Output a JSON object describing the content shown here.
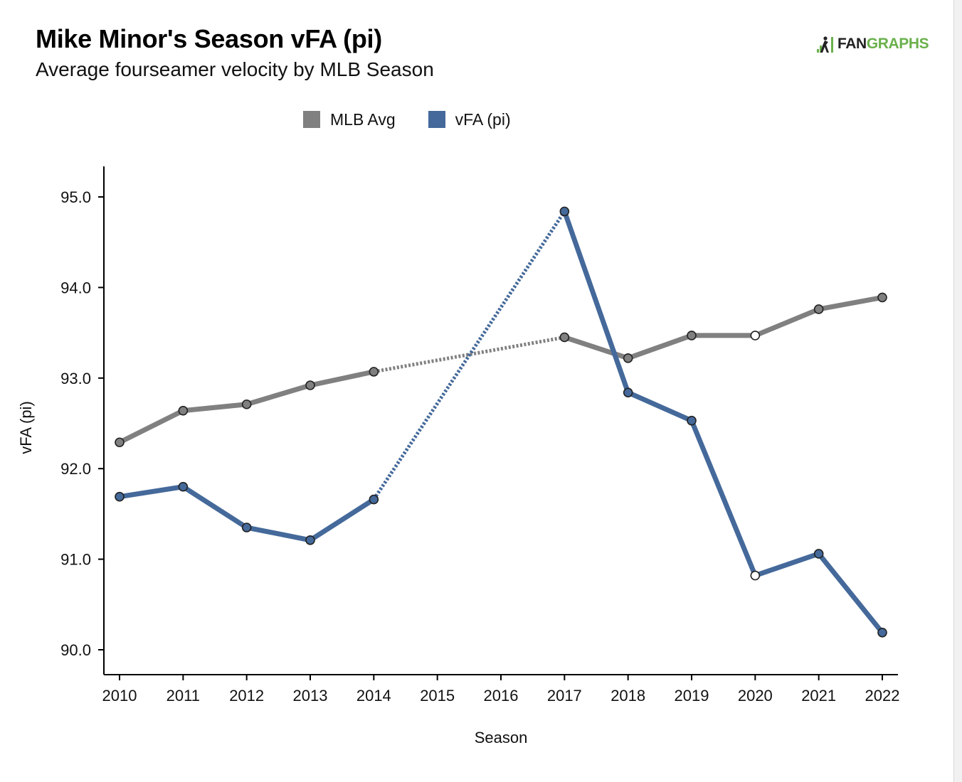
{
  "header": {
    "title": "Mike Minor's Season vFA (pi)",
    "subtitle": "Average fourseamer velocity by MLB Season"
  },
  "brand": {
    "fan": "FAN",
    "graphs": "GRAPHS",
    "icon": "fangraphs-logo-icon"
  },
  "colors": {
    "mlb": "#808080",
    "player": "#44699a",
    "axis": "#000000",
    "brand_green": "#6ab04c"
  },
  "chart_data": {
    "type": "line",
    "xlabel": "Season",
    "ylabel": "vFA (pi)",
    "ylim": [
      89.7,
      95.35
    ],
    "xlim": [
      2009.8,
      2022.2
    ],
    "x_ticks": [
      2010,
      2011,
      2012,
      2013,
      2014,
      2015,
      2016,
      2017,
      2018,
      2019,
      2020,
      2021,
      2022
    ],
    "x_tick_labels": [
      "2010",
      "2011",
      "2012",
      "2013",
      "2014",
      "2015",
      "2016",
      "2017",
      "2018",
      "2019",
      "2020",
      "2021",
      "2022"
    ],
    "y_ticks": [
      90,
      91,
      92,
      93,
      94,
      95
    ],
    "y_tick_labels": [
      "90.0",
      "91.0",
      "92.0",
      "93.0",
      "94.0",
      "95.0"
    ],
    "grid": false,
    "legend_position": "top-center",
    "series": [
      {
        "name": "MLB Avg",
        "color": "#808080",
        "x": [
          2010,
          2011,
          2012,
          2013,
          2014,
          2017,
          2018,
          2019,
          2020,
          2021,
          2022
        ],
        "values": [
          92.29,
          92.64,
          92.71,
          92.92,
          93.07,
          93.45,
          93.22,
          93.47,
          93.47,
          93.76,
          93.89
        ],
        "hollow_points": [
          2020
        ],
        "gap_dotted": [
          [
            2014,
            2017
          ]
        ]
      },
      {
        "name": "vFA (pi)",
        "color": "#44699a",
        "x": [
          2010,
          2011,
          2012,
          2013,
          2014,
          2017,
          2018,
          2019,
          2020,
          2021,
          2022
        ],
        "values": [
          91.69,
          91.8,
          91.35,
          91.21,
          91.66,
          94.84,
          92.84,
          92.53,
          90.82,
          91.06,
          90.19
        ],
        "hollow_points": [
          2020
        ],
        "gap_dotted": [
          [
            2014,
            2017
          ]
        ]
      }
    ]
  }
}
